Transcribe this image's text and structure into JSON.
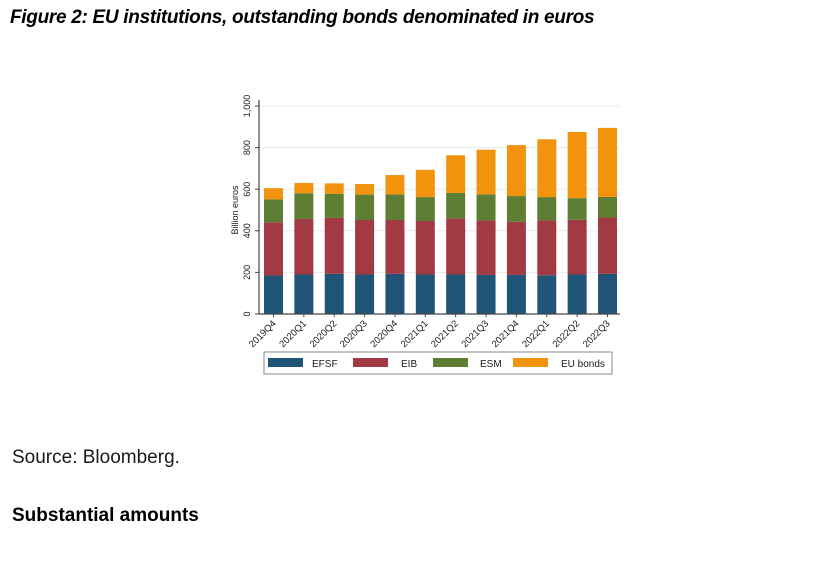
{
  "page": {
    "title": "Figure 2: EU institutions, outstanding bonds denominated in euros",
    "source": "Source: Bloomberg.",
    "next_section_heading": "Substantial amounts"
  },
  "chart_data": {
    "type": "bar",
    "stacked": true,
    "title": "",
    "xlabel": "",
    "ylabel": "Billion euros",
    "ylim": [
      0,
      1000
    ],
    "yticks": [
      0,
      200,
      400,
      600,
      800,
      1000
    ],
    "ytick_labels": [
      "0",
      "200",
      "400",
      "600",
      "800",
      "1,000"
    ],
    "grid": true,
    "legend_position": "bottom",
    "categories": [
      "2019Q4",
      "2020Q1",
      "2020Q2",
      "2020Q3",
      "2020Q4",
      "2021Q1",
      "2021Q2",
      "2021Q3",
      "2021Q4",
      "2022Q1",
      "2022Q2",
      "2022Q3"
    ],
    "series": [
      {
        "name": "EFSF",
        "color": "#215578",
        "values": [
          185,
          190,
          193,
          190,
          193,
          190,
          190,
          188,
          188,
          186,
          190,
          193
        ]
      },
      {
        "name": "EIB",
        "color": "#a23a44",
        "values": [
          256,
          267,
          269,
          262,
          259,
          257,
          270,
          262,
          255,
          264,
          263,
          271
        ]
      },
      {
        "name": "ESM",
        "color": "#5e7e33",
        "values": [
          110,
          123,
          116,
          122,
          123,
          115,
          122,
          125,
          124,
          112,
          104,
          99
        ]
      },
      {
        "name": "EU bonds",
        "color": "#f2930e",
        "values": [
          54,
          50,
          50,
          51,
          93,
          131,
          181,
          215,
          245,
          278,
          318,
          332
        ]
      }
    ],
    "colors": {
      "grid_line": "#e9e9e9",
      "axis_line": "#454545",
      "tick_text": "#1a1a1a",
      "legend_border": "#8a8a8a"
    }
  }
}
